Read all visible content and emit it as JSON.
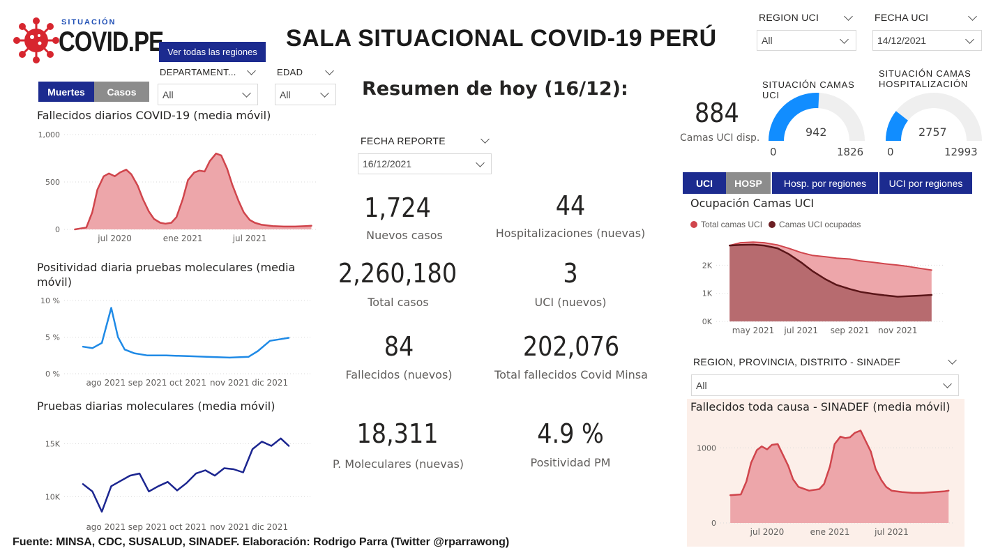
{
  "header": {
    "logo_sub": "SITUACIÓN",
    "logo_main": "COVID.PE",
    "title": "SALA SITUACIONAL COVID-19 PERÚ",
    "regions_button": "Ver todas las regiones"
  },
  "filters": {
    "region_uci": {
      "label": "REGION UCI",
      "value": "All"
    },
    "fecha_uci": {
      "label": "FECHA UCI",
      "value": "14/12/2021"
    },
    "departamento": {
      "label": "DEPARTAMENT...",
      "value": "All"
    },
    "edad": {
      "label": "EDAD",
      "value": "All"
    },
    "fecha_reporte": {
      "label": "FECHA REPORTE",
      "value": "16/12/2021"
    },
    "sinadef": {
      "label": "REGION, PROVINCIA, DISTRITO - SINADEF",
      "value": "All"
    }
  },
  "toggles": {
    "muertes": "Muertes",
    "casos": "Casos",
    "uci": "UCI",
    "hosp": "HOSP",
    "hosp_regiones": "Hosp. por regiones",
    "uci_regiones": "UCI por regiones"
  },
  "summary": {
    "title": "Resumen de hoy (16/12):",
    "kpis": [
      {
        "value": "1,724",
        "label": "Nuevos casos"
      },
      {
        "value": "44",
        "label": "Hospitalizaciones (nuevas)"
      },
      {
        "value": "2,260,180",
        "label": "Total casos"
      },
      {
        "value": "3",
        "label": "UCI (nuevos)"
      },
      {
        "value": "84",
        "label": "Fallecidos  (nuevos)"
      },
      {
        "value": "202,076",
        "label": "Total fallecidos Covid Minsa"
      },
      {
        "value": "18,311",
        "label": "P. Moleculares (nuevas)"
      },
      {
        "value": "4.9 %",
        "label": "Positividad PM"
      }
    ]
  },
  "beds": {
    "uci_available": "884",
    "uci_available_label": "Camas UCI disp.",
    "uci_gauge": {
      "title": "SITUACIÓN CAMAS UCI",
      "value": 942,
      "min": 0,
      "max": 1826,
      "color": "#118dff"
    },
    "hosp_gauge": {
      "title": "SITUACIÓN CAMAS HOSPITALIZACIÓN",
      "value": 2757,
      "min": 0,
      "max": 12993,
      "color": "#118dff"
    }
  },
  "colors": {
    "navy": "#1c2b8f",
    "red_line": "#d0454c",
    "red_fill": "#eda6aa",
    "blue_line": "#1f8ae6",
    "dark_blue": "#1c2690",
    "maroon": "#6b1e22"
  },
  "footer": "Fuente: MINSA, CDC, SUSALUD, SINADEF. Elaboración: Rodrigo Parra (Twitter @rparrawong)",
  "chart_data": [
    {
      "id": "deaths",
      "type": "area",
      "title": "Fallecidos diarios COVID-19 (media móvil)",
      "x_ticks": [
        "jul 2020",
        "ene 2021",
        "jul 2021"
      ],
      "y_ticks": [
        "1,000",
        "500",
        "0"
      ],
      "ylim": [
        0,
        1000
      ],
      "x": [
        "2020-03-15",
        "2020-04-15",
        "2020-05-01",
        "2020-05-15",
        "2020-06-01",
        "2020-06-15",
        "2020-07-01",
        "2020-07-15",
        "2020-08-01",
        "2020-08-15",
        "2020-09-01",
        "2020-09-15",
        "2020-10-01",
        "2020-10-15",
        "2020-11-01",
        "2020-11-15",
        "2020-12-01",
        "2020-12-15",
        "2021-01-01",
        "2021-01-15",
        "2021-02-01",
        "2021-02-15",
        "2021-03-01",
        "2021-03-15",
        "2021-04-01",
        "2021-04-15",
        "2021-05-01",
        "2021-05-15",
        "2021-06-01",
        "2021-06-15",
        "2021-07-01",
        "2021-07-15",
        "2021-08-01",
        "2021-09-01",
        "2021-10-01",
        "2021-11-01",
        "2021-12-01",
        "2021-12-15"
      ],
      "series": [
        {
          "values": [
            0,
            20,
            180,
            420,
            560,
            590,
            560,
            600,
            630,
            580,
            460,
            320,
            190,
            110,
            70,
            60,
            70,
            130,
            320,
            520,
            600,
            620,
            610,
            720,
            800,
            780,
            640,
            470,
            300,
            180,
            100,
            70,
            50,
            35,
            30,
            30,
            35,
            38
          ]
        }
      ]
    },
    {
      "id": "positivity",
      "type": "line",
      "title": "Positividad diaria pruebas moleculares (media móvil)",
      "x_ticks": [
        "ago 2021",
        "sep 2021",
        "oct 2021",
        "nov 2021",
        "dic 2021"
      ],
      "y_ticks": [
        "10 %",
        "5 %",
        "0 %"
      ],
      "ylim": [
        0,
        10
      ],
      "x": [
        "2021-07-15",
        "2021-07-22",
        "2021-07-29",
        "2021-08-05",
        "2021-08-10",
        "2021-08-15",
        "2021-08-22",
        "2021-09-01",
        "2021-09-15",
        "2021-10-01",
        "2021-10-15",
        "2021-11-01",
        "2021-11-15",
        "2021-11-22",
        "2021-12-01",
        "2021-12-08",
        "2021-12-15"
      ],
      "series": [
        {
          "values": [
            3.7,
            3.5,
            4.2,
            9.0,
            5.0,
            3.3,
            2.8,
            2.5,
            2.5,
            2.4,
            2.3,
            2.2,
            2.3,
            3.1,
            4.5,
            4.7,
            4.9
          ]
        }
      ]
    },
    {
      "id": "tests",
      "type": "line",
      "title": "Pruebas diarias moleculares (media móvil)",
      "x_ticks": [
        "ago 2021",
        "sep 2021",
        "oct 2021",
        "nov 2021",
        "dic 2021"
      ],
      "y_ticks": [
        "15K",
        "10K"
      ],
      "ylim": [
        8000,
        17000
      ],
      "x": [
        "2021-07-15",
        "2021-07-22",
        "2021-07-29",
        "2021-08-05",
        "2021-08-12",
        "2021-08-19",
        "2021-08-26",
        "2021-09-02",
        "2021-09-09",
        "2021-09-16",
        "2021-09-23",
        "2021-09-30",
        "2021-10-07",
        "2021-10-14",
        "2021-10-21",
        "2021-10-28",
        "2021-11-04",
        "2021-11-11",
        "2021-11-18",
        "2021-11-25",
        "2021-12-02",
        "2021-12-09",
        "2021-12-15"
      ],
      "series": [
        {
          "values": [
            11200,
            10500,
            8600,
            11000,
            11500,
            12000,
            12200,
            10500,
            11000,
            11400,
            10600,
            11300,
            12200,
            12500,
            12000,
            12700,
            12600,
            12300,
            14500,
            15200,
            14800,
            15500,
            14800
          ]
        }
      ]
    },
    {
      "id": "uci_occupancy",
      "type": "area",
      "title": "Ocupación Camas UCI",
      "x_ticks": [
        "may 2021",
        "jul 2021",
        "sep 2021",
        "nov 2021"
      ],
      "y_ticks": [
        "2K",
        "1K",
        "0K"
      ],
      "ylim": [
        0,
        3000
      ],
      "legend": [
        "Total camas UCI",
        "Camas UCI ocupadas"
      ],
      "x": [
        "2021-04-01",
        "2021-04-15",
        "2021-05-01",
        "2021-05-15",
        "2021-06-01",
        "2021-06-15",
        "2021-07-01",
        "2021-07-15",
        "2021-08-01",
        "2021-08-15",
        "2021-09-01",
        "2021-09-15",
        "2021-10-01",
        "2021-10-15",
        "2021-11-01",
        "2021-11-15",
        "2021-12-01",
        "2021-12-14"
      ],
      "series": [
        {
          "name": "Total camas UCI",
          "values": [
            2700,
            2800,
            2820,
            2800,
            2720,
            2600,
            2450,
            2350,
            2300,
            2250,
            2220,
            2150,
            2100,
            2050,
            2000,
            1950,
            1880,
            1826
          ]
        },
        {
          "name": "Camas UCI ocupadas",
          "values": [
            2700,
            2720,
            2730,
            2700,
            2600,
            2400,
            2100,
            1800,
            1500,
            1300,
            1150,
            1050,
            980,
            930,
            880,
            900,
            920,
            942
          ]
        }
      ]
    },
    {
      "id": "sinadef",
      "type": "area",
      "title": "Fallecidos toda causa - SINADEF (media móvil)",
      "x_ticks": [
        "jul 2020",
        "ene 2021",
        "jul 2021"
      ],
      "y_ticks": [
        "1000",
        "0"
      ],
      "ylim": [
        0,
        1300
      ],
      "x": [
        "2020-03-15",
        "2020-04-15",
        "2020-05-01",
        "2020-05-15",
        "2020-06-01",
        "2020-06-15",
        "2020-07-01",
        "2020-07-15",
        "2020-08-01",
        "2020-08-15",
        "2020-09-01",
        "2020-09-15",
        "2020-10-01",
        "2020-11-01",
        "2020-12-01",
        "2020-12-15",
        "2021-01-01",
        "2021-01-15",
        "2021-02-01",
        "2021-02-15",
        "2021-03-01",
        "2021-03-15",
        "2021-04-01",
        "2021-04-15",
        "2021-05-01",
        "2021-05-15",
        "2021-06-01",
        "2021-06-15",
        "2021-07-01",
        "2021-08-01",
        "2021-09-01",
        "2021-10-01",
        "2021-11-01",
        "2021-12-01",
        "2021-12-15"
      ],
      "series": [
        {
          "values": [
            370,
            380,
            550,
            800,
            970,
            1020,
            980,
            1040,
            1050,
            920,
            760,
            580,
            480,
            430,
            450,
            520,
            750,
            1050,
            1150,
            1130,
            1140,
            1200,
            1230,
            1100,
            950,
            720,
            570,
            480,
            430,
            410,
            400,
            400,
            410,
            420,
            430
          ]
        }
      ]
    }
  ]
}
